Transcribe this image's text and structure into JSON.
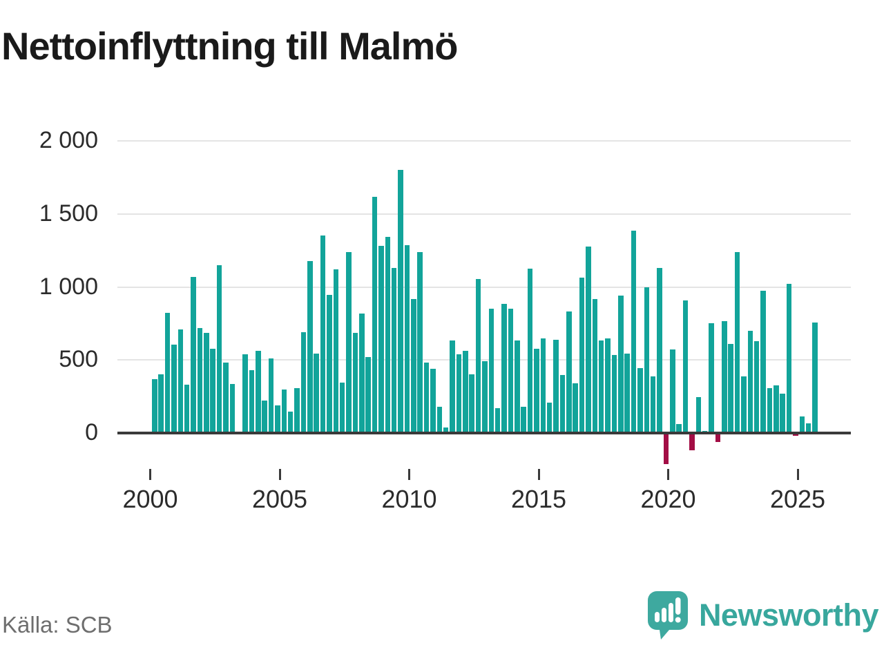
{
  "title": "Nettoinflyttning till Malmö",
  "footer": {
    "source": "Källa: SCB",
    "brand": "Newsworthy"
  },
  "icons": {
    "brand_logo": "speech-bubble-with-bar-chart-and-exclamation"
  },
  "colors": {
    "bar_positive": "#12a49a",
    "bar_negative": "#a30e45",
    "axis": "#3a3a3a",
    "gridline": "#e4e4e4",
    "title": "#1a1a1a",
    "tick_label": "#2b2b2b",
    "source_text": "#6e6e6e",
    "brand_text": "#38a79d",
    "logo_fill": "#3ea99f"
  },
  "chart_data": {
    "type": "bar",
    "title": "Nettoinflyttning till Malmö",
    "x_unit": "quarter",
    "grid": true,
    "legend": "none",
    "ylim": [
      -260,
      2050
    ],
    "y_ticks": [
      {
        "value": 0,
        "label": "0"
      },
      {
        "value": 500,
        "label": "500"
      },
      {
        "value": 1000,
        "label": "1 000"
      },
      {
        "value": 1500,
        "label": "1 500"
      },
      {
        "value": 2000,
        "label": "2 000"
      }
    ],
    "x_ticks": [
      {
        "label": "2000",
        "quarter_index": 0
      },
      {
        "label": "2005",
        "quarter_index": 20
      },
      {
        "label": "2010",
        "quarter_index": 40
      },
      {
        "label": "2015",
        "quarter_index": 60
      },
      {
        "label": "2020",
        "quarter_index": 80
      },
      {
        "label": "2025",
        "quarter_index": 100
      }
    ],
    "series": [
      {
        "name": "Nettoinflyttning",
        "points": [
          {
            "x": "2000Q1",
            "y": 370
          },
          {
            "x": "2000Q2",
            "y": 400
          },
          {
            "x": "2000Q3",
            "y": 825
          },
          {
            "x": "2000Q4",
            "y": 605
          },
          {
            "x": "2001Q1",
            "y": 710
          },
          {
            "x": "2001Q2",
            "y": 330
          },
          {
            "x": "2001Q3",
            "y": 1070
          },
          {
            "x": "2001Q4",
            "y": 720
          },
          {
            "x": "2002Q1",
            "y": 685
          },
          {
            "x": "2002Q2",
            "y": 575
          },
          {
            "x": "2002Q3",
            "y": 1150
          },
          {
            "x": "2002Q4",
            "y": 480
          },
          {
            "x": "2003Q1",
            "y": 335
          },
          {
            "x": "2003Q2",
            "y": 0
          },
          {
            "x": "2003Q3",
            "y": 540
          },
          {
            "x": "2003Q4",
            "y": 430
          },
          {
            "x": "2004Q1",
            "y": 565
          },
          {
            "x": "2004Q2",
            "y": 220
          },
          {
            "x": "2004Q3",
            "y": 510
          },
          {
            "x": "2004Q4",
            "y": 190
          },
          {
            "x": "2005Q1",
            "y": 300
          },
          {
            "x": "2005Q2",
            "y": 145
          },
          {
            "x": "2005Q3",
            "y": 305
          },
          {
            "x": "2005Q4",
            "y": 690
          },
          {
            "x": "2006Q1",
            "y": 1175
          },
          {
            "x": "2006Q2",
            "y": 545
          },
          {
            "x": "2006Q3",
            "y": 1350
          },
          {
            "x": "2006Q4",
            "y": 945
          },
          {
            "x": "2007Q1",
            "y": 1120
          },
          {
            "x": "2007Q2",
            "y": 345
          },
          {
            "x": "2007Q3",
            "y": 1240
          },
          {
            "x": "2007Q4",
            "y": 685
          },
          {
            "x": "2008Q1",
            "y": 820
          },
          {
            "x": "2008Q2",
            "y": 520
          },
          {
            "x": "2008Q3",
            "y": 1615
          },
          {
            "x": "2008Q4",
            "y": 1280
          },
          {
            "x": "2009Q1",
            "y": 1345
          },
          {
            "x": "2009Q2",
            "y": 1130
          },
          {
            "x": "2009Q3",
            "y": 1800
          },
          {
            "x": "2009Q4",
            "y": 1285
          },
          {
            "x": "2010Q1",
            "y": 915
          },
          {
            "x": "2010Q2",
            "y": 1240
          },
          {
            "x": "2010Q3",
            "y": 480
          },
          {
            "x": "2010Q4",
            "y": 440
          },
          {
            "x": "2011Q1",
            "y": 180
          },
          {
            "x": "2011Q2",
            "y": 40
          },
          {
            "x": "2011Q3",
            "y": 635
          },
          {
            "x": "2011Q4",
            "y": 540
          },
          {
            "x": "2012Q1",
            "y": 565
          },
          {
            "x": "2012Q2",
            "y": 400
          },
          {
            "x": "2012Q3",
            "y": 1055
          },
          {
            "x": "2012Q4",
            "y": 490
          },
          {
            "x": "2013Q1",
            "y": 850
          },
          {
            "x": "2013Q2",
            "y": 170
          },
          {
            "x": "2013Q3",
            "y": 885
          },
          {
            "x": "2013Q4",
            "y": 850
          },
          {
            "x": "2014Q1",
            "y": 635
          },
          {
            "x": "2014Q2",
            "y": 180
          },
          {
            "x": "2014Q3",
            "y": 1125
          },
          {
            "x": "2014Q4",
            "y": 575
          },
          {
            "x": "2015Q1",
            "y": 650
          },
          {
            "x": "2015Q2",
            "y": 210
          },
          {
            "x": "2015Q3",
            "y": 640
          },
          {
            "x": "2015Q4",
            "y": 395
          },
          {
            "x": "2016Q1",
            "y": 830
          },
          {
            "x": "2016Q2",
            "y": 340
          },
          {
            "x": "2016Q3",
            "y": 1065
          },
          {
            "x": "2016Q4",
            "y": 1275
          },
          {
            "x": "2017Q1",
            "y": 915
          },
          {
            "x": "2017Q2",
            "y": 635
          },
          {
            "x": "2017Q3",
            "y": 650
          },
          {
            "x": "2017Q4",
            "y": 535
          },
          {
            "x": "2018Q1",
            "y": 940
          },
          {
            "x": "2018Q2",
            "y": 545
          },
          {
            "x": "2018Q3",
            "y": 1385
          },
          {
            "x": "2018Q4",
            "y": 445
          },
          {
            "x": "2019Q1",
            "y": 1000
          },
          {
            "x": "2019Q2",
            "y": 390
          },
          {
            "x": "2019Q3",
            "y": 1130
          },
          {
            "x": "2019Q4",
            "y": -205
          },
          {
            "x": "2020Q1",
            "y": 570
          },
          {
            "x": "2020Q2",
            "y": 60
          },
          {
            "x": "2020Q3",
            "y": 910
          },
          {
            "x": "2020Q4",
            "y": -110
          },
          {
            "x": "2021Q1",
            "y": 245
          },
          {
            "x": "2021Q2",
            "y": 15
          },
          {
            "x": "2021Q3",
            "y": 750
          },
          {
            "x": "2021Q4",
            "y": -50
          },
          {
            "x": "2022Q1",
            "y": 765
          },
          {
            "x": "2022Q2",
            "y": 610
          },
          {
            "x": "2022Q3",
            "y": 1240
          },
          {
            "x": "2022Q4",
            "y": 390
          },
          {
            "x": "2023Q1",
            "y": 700
          },
          {
            "x": "2023Q2",
            "y": 630
          },
          {
            "x": "2023Q3",
            "y": 975
          },
          {
            "x": "2023Q4",
            "y": 305
          },
          {
            "x": "2024Q1",
            "y": 325
          },
          {
            "x": "2024Q2",
            "y": 270
          },
          {
            "x": "2024Q3",
            "y": 1020
          },
          {
            "x": "2024Q4",
            "y": -10
          },
          {
            "x": "2025Q1",
            "y": 115
          },
          {
            "x": "2025Q2",
            "y": 65
          },
          {
            "x": "2025Q3",
            "y": 755
          }
        ]
      }
    ]
  }
}
